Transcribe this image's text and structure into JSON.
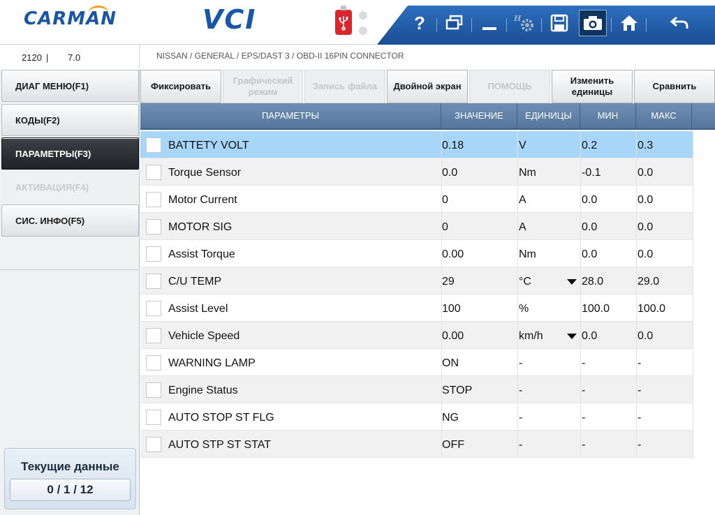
{
  "header": {
    "logo": "CARMAN",
    "app_name": "VCI"
  },
  "info": {
    "code": "2120",
    "separator": "|",
    "version": "7.0",
    "breadcrumb": "NISSAN / GENERAL / EPS/DAST 3 / OBD-II 16PIN CONNECTOR"
  },
  "toolbar": {
    "icons": [
      "help-icon",
      "window-icon",
      "minimize-icon",
      "settings-icon",
      "save-icon",
      "camera-icon",
      "home-icon",
      "back-icon"
    ],
    "help_label": "?"
  },
  "sidebar": {
    "items": [
      {
        "label": "ДИАГ МЕНЮ(F1)",
        "state": "normal"
      },
      {
        "label": "КОДЫ(F2)",
        "state": "normal"
      },
      {
        "label": "ПАРАМЕТРЫ(F3)",
        "state": "active"
      },
      {
        "label": "АКТИВАЦИЯ(F4)",
        "state": "disabled"
      },
      {
        "label": "СИС. ИНФО(F5)",
        "state": "normal"
      }
    ],
    "counter_title": "Текущие данные",
    "counter_value": "0 / 1 / 12"
  },
  "function_buttons": [
    {
      "label": "Фиксировать",
      "enabled": true
    },
    {
      "label": "Графический режим",
      "enabled": false
    },
    {
      "label": "Запись файла",
      "enabled": false
    },
    {
      "label": "Двойной экран",
      "enabled": true
    },
    {
      "label": "ПОМОЩЬ",
      "enabled": false
    },
    {
      "label": "Изменить единицы",
      "enabled": true
    },
    {
      "label": "Сравнить",
      "enabled": true
    }
  ],
  "table": {
    "columns": [
      "ПАРАМЕТРЫ",
      "ЗНАЧЕНИЕ",
      "ЕДИНИЦЫ",
      "МИН",
      "МАКС"
    ],
    "rows": [
      {
        "name": "BATTETY VOLT",
        "value": "0.18",
        "unit": "V",
        "min": "0.2",
        "max": "0.3",
        "selected": true,
        "unit_dropdown": false
      },
      {
        "name": "Torque Sensor",
        "value": "0.0",
        "unit": "Nm",
        "min": "-0.1",
        "max": "0.0",
        "selected": false,
        "unit_dropdown": false
      },
      {
        "name": "Motor Current",
        "value": "0",
        "unit": "A",
        "min": "0.0",
        "max": "0.0",
        "selected": false,
        "unit_dropdown": false
      },
      {
        "name": "MOTOR SIG",
        "value": "0",
        "unit": "A",
        "min": "0.0",
        "max": "0.0",
        "selected": false,
        "unit_dropdown": false
      },
      {
        "name": "Assist Torque",
        "value": "0.00",
        "unit": "Nm",
        "min": "0.0",
        "max": "0.0",
        "selected": false,
        "unit_dropdown": false
      },
      {
        "name": "C/U TEMP",
        "value": "29",
        "unit": "°C",
        "min": "28.0",
        "max": "29.0",
        "selected": false,
        "unit_dropdown": true
      },
      {
        "name": "Assist Level",
        "value": "100",
        "unit": "%",
        "min": "100.0",
        "max": "100.0",
        "selected": false,
        "unit_dropdown": false
      },
      {
        "name": "Vehicle Speed",
        "value": "0.00",
        "unit": "km/h",
        "min": "0.0",
        "max": "0.0",
        "selected": false,
        "unit_dropdown": true
      },
      {
        "name": "WARNING LAMP",
        "value": "ON",
        "unit": "-",
        "min": "-",
        "max": "-",
        "selected": false,
        "unit_dropdown": false
      },
      {
        "name": "Engine Status",
        "value": "STOP",
        "unit": "-",
        "min": "-",
        "max": "-",
        "selected": false,
        "unit_dropdown": false
      },
      {
        "name": "AUTO STOP ST FLG",
        "value": "NG",
        "unit": "-",
        "min": "-",
        "max": "-",
        "selected": false,
        "unit_dropdown": false
      },
      {
        "name": "AUTO STP ST STAT",
        "value": "OFF",
        "unit": "-",
        "min": "-",
        "max": "-",
        "selected": false,
        "unit_dropdown": false
      }
    ]
  },
  "colors": {
    "brand_blue": "#1a56a6",
    "selected_row": "#a7d6f9",
    "header_blue": "#55769c"
  }
}
